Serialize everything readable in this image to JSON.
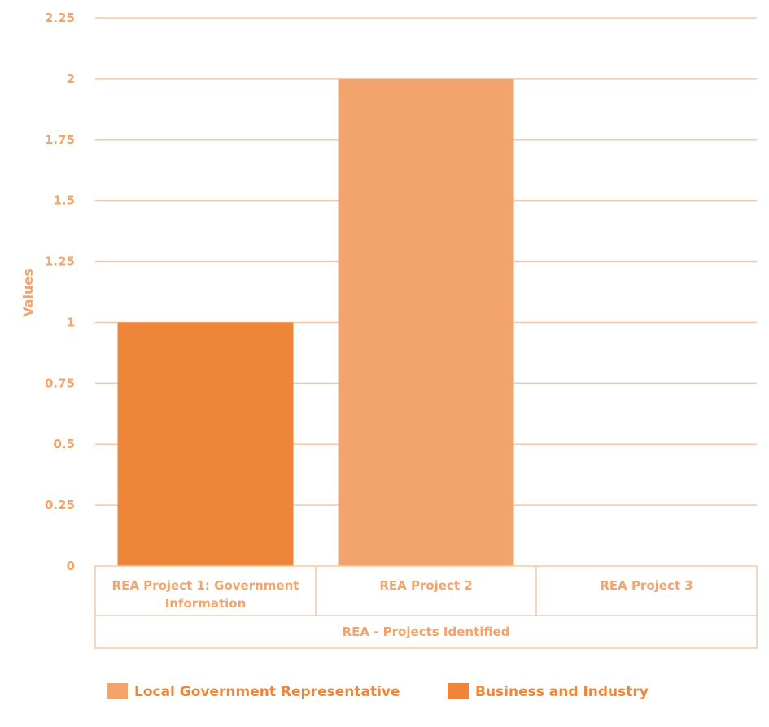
{
  "chart_data": {
    "type": "bar",
    "categories": [
      "REA Project 1: Government Information",
      "REA Project 2",
      "REA Project 3"
    ],
    "category_lines": [
      [
        "REA Project 1: Government",
        "Information"
      ],
      [
        "REA Project 2"
      ],
      [
        "REA Project 3"
      ]
    ],
    "group_label": "REA - Projects Identified",
    "series": [
      {
        "name": "Local Government Representative",
        "color": "#f2a46c",
        "values": [
          null,
          2,
          null
        ]
      },
      {
        "name": "Business and Industry",
        "color": "#ef8538",
        "values": [
          1,
          null,
          null
        ]
      }
    ],
    "ylabel": "Values",
    "xlabel": "",
    "ylim": [
      0,
      2.25
    ],
    "yticks": [
      "0",
      "0.25",
      "0.5",
      "0.75",
      "1",
      "1.25",
      "1.5",
      "1.75",
      "2",
      "2.25"
    ],
    "grid": true,
    "legend_position": "bottom"
  },
  "colors": {
    "grid": "#f5c8a4",
    "text": "#f2a46c",
    "legend_text": "#ef8538"
  }
}
